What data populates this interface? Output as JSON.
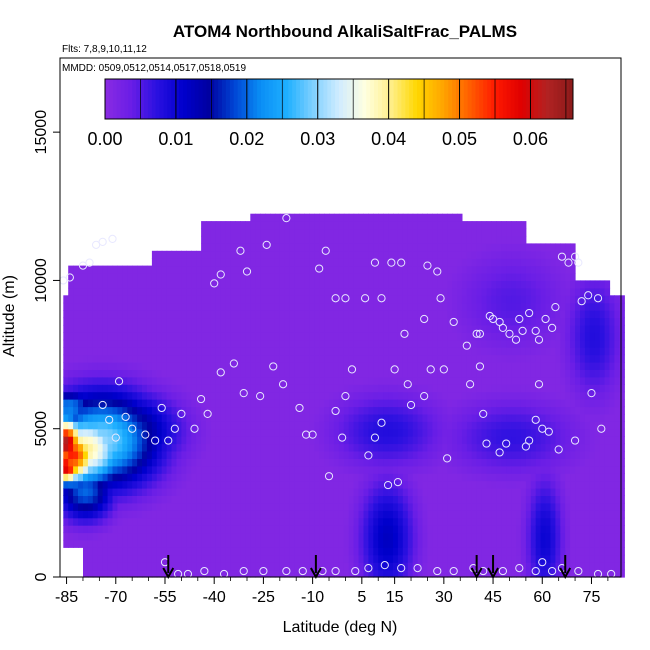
{
  "chart_data": {
    "type": "heatmap",
    "title": "ATOM4 Northbound AlkaliSaltFrac_PALMS",
    "subtitle_flights": "Flts: 7,8,9,10,11,12",
    "subtitle_dates": "MMDD: 0509,0512,0514,0517,0518,0519",
    "xlabel": "Latitude (deg N)",
    "ylabel": "Altitude (m)",
    "xlim": [
      -87,
      84
    ],
    "ylim": [
      0,
      17500
    ],
    "x_ticks": [
      -85,
      -70,
      -55,
      -40,
      -25,
      -10,
      5,
      15,
      30,
      45,
      60,
      75
    ],
    "y_ticks": [
      0,
      5000,
      10000,
      15000
    ],
    "colorbar": {
      "ticks": [
        "0.00",
        "0.01",
        "0.02",
        "0.03",
        "0.04",
        "0.05",
        "0.06"
      ],
      "range": [
        0,
        0.066
      ],
      "colors": [
        "#8a2be2",
        "#6a1ee6",
        "#2a10e0",
        "#0000cd",
        "#0000a0",
        "#0047d6",
        "#0a8ff5",
        "#1fb0ff",
        "#7fd0ff",
        "#d0ecff",
        "#ffffe0",
        "#ffef8a",
        "#ffd700",
        "#ffa500",
        "#ff6000",
        "#ff1a00",
        "#e00000",
        "#b22222",
        "#8b1a1a"
      ]
    },
    "background_value": 0.001,
    "coverage": [
      {
        "x": [
          -85,
          -60
        ],
        "top": 10500
      },
      {
        "x": [
          -60,
          -45
        ],
        "top": 11000
      },
      {
        "x": [
          -45,
          -30
        ],
        "top": 11800
      },
      {
        "x": [
          -30,
          35
        ],
        "top": 12200
      },
      {
        "x": [
          35,
          55
        ],
        "top": 11800
      },
      {
        "x": [
          55,
          70
        ],
        "top": 11200
      },
      {
        "x": [
          70,
          80
        ],
        "top": 10000
      },
      {
        "x": [
          80,
          84
        ],
        "top": 9500
      }
    ],
    "hotspots": [
      {
        "lat": -86,
        "alt": 4400,
        "value": 0.063,
        "sx": 4,
        "sy": 600
      },
      {
        "lat": -86,
        "alt": 3600,
        "value": 0.06,
        "sx": 4,
        "sy": 400
      },
      {
        "lat": -84,
        "alt": 4000,
        "value": 0.055,
        "sx": 6,
        "sy": 700
      },
      {
        "lat": -80,
        "alt": 4200,
        "value": 0.04,
        "sx": 9,
        "sy": 900
      },
      {
        "lat": -75,
        "alt": 4500,
        "value": 0.03,
        "sx": 12,
        "sy": 1100
      },
      {
        "lat": -80,
        "alt": 2800,
        "value": 0.02,
        "sx": 6,
        "sy": 700
      },
      {
        "lat": -70,
        "alt": 4800,
        "value": 0.02,
        "sx": 12,
        "sy": 900
      },
      {
        "lat": -85,
        "alt": 5600,
        "value": 0.022,
        "sx": 6,
        "sy": 400
      },
      {
        "lat": 12,
        "alt": 1200,
        "value": 0.012,
        "sx": 6,
        "sy": 1400
      },
      {
        "lat": 12,
        "alt": 4800,
        "value": 0.008,
        "sx": 12,
        "sy": 900
      },
      {
        "lat": 60,
        "alt": 1200,
        "value": 0.01,
        "sx": 4,
        "sy": 1500
      },
      {
        "lat": 50,
        "alt": 4600,
        "value": 0.007,
        "sx": 14,
        "sy": 900
      },
      {
        "lat": 75,
        "alt": 8000,
        "value": 0.008,
        "sx": 6,
        "sy": 1500
      },
      {
        "lat": 50,
        "alt": 9200,
        "value": 0.005,
        "sx": 12,
        "sy": 1200
      }
    ],
    "sample_points": [
      [
        -86,
        10000
      ],
      [
        -84,
        10100
      ],
      [
        -80,
        10500
      ],
      [
        -78,
        10600
      ],
      [
        -76,
        11200
      ],
      [
        -74,
        11300
      ],
      [
        -71,
        11400
      ],
      [
        -69,
        6600
      ],
      [
        -74,
        5800
      ],
      [
        -72,
        5300
      ],
      [
        -70,
        4700
      ],
      [
        -67,
        5400
      ],
      [
        -65,
        5000
      ],
      [
        -56,
        5700
      ],
      [
        -61,
        4800
      ],
      [
        -58,
        4600
      ],
      [
        -54,
        4600
      ],
      [
        -52,
        5000
      ],
      [
        -50,
        5500
      ],
      [
        -46,
        5000
      ],
      [
        -42,
        5500
      ],
      [
        -44,
        6000
      ],
      [
        -38,
        6900
      ],
      [
        -34,
        7200
      ],
      [
        -31,
        6200
      ],
      [
        -26,
        6100
      ],
      [
        -22,
        7100
      ],
      [
        -24,
        11200
      ],
      [
        -18,
        12100
      ],
      [
        -19,
        6500
      ],
      [
        -14,
        5700
      ],
      [
        -12,
        4800
      ],
      [
        -10,
        4800
      ],
      [
        -3,
        5600
      ],
      [
        -1,
        4700
      ],
      [
        -5,
        3400
      ],
      [
        0,
        6100
      ],
      [
        2,
        7000
      ],
      [
        -38,
        10200
      ],
      [
        -40,
        9900
      ],
      [
        -32,
        11000
      ],
      [
        -30,
        10300
      ],
      [
        -6,
        11000
      ],
      [
        -8,
        10400
      ],
      [
        -3,
        9400
      ],
      [
        0,
        9400
      ],
      [
        6,
        9400
      ],
      [
        9,
        10600
      ],
      [
        11,
        9400
      ],
      [
        14,
        10600
      ],
      [
        17,
        10600
      ],
      [
        19,
        6500
      ],
      [
        24,
        6100
      ],
      [
        25,
        10500
      ],
      [
        28,
        10300
      ],
      [
        29,
        9400
      ],
      [
        30,
        7000
      ],
      [
        33,
        8600
      ],
      [
        37,
        7800
      ],
      [
        40,
        8200
      ],
      [
        41,
        8200
      ],
      [
        41,
        7100
      ],
      [
        44,
        8800
      ],
      [
        45,
        8700
      ],
      [
        47,
        8600
      ],
      [
        48,
        8400
      ],
      [
        50,
        8200
      ],
      [
        52,
        8000
      ],
      [
        53,
        8700
      ],
      [
        54,
        8300
      ],
      [
        56,
        8900
      ],
      [
        58,
        8300
      ],
      [
        59,
        8000
      ],
      [
        61,
        8700
      ],
      [
        63,
        8400
      ],
      [
        64,
        9100
      ],
      [
        66,
        10800
      ],
      [
        68,
        10600
      ],
      [
        70,
        10800
      ],
      [
        71,
        10600
      ],
      [
        72,
        9300
      ],
      [
        74,
        9500
      ],
      [
        77,
        9400
      ],
      [
        78,
        5000
      ],
      [
        75,
        6200
      ],
      [
        70,
        4600
      ],
      [
        65,
        4300
      ],
      [
        62,
        4900
      ],
      [
        60,
        5000
      ],
      [
        58,
        5300
      ],
      [
        56,
        4600
      ],
      [
        55,
        4400
      ],
      [
        49,
        4500
      ],
      [
        47,
        4200
      ],
      [
        43,
        4500
      ],
      [
        42,
        5500
      ],
      [
        38,
        6500
      ],
      [
        31,
        4000
      ],
      [
        26,
        7000
      ],
      [
        24,
        8700
      ],
      [
        20,
        5800
      ],
      [
        18,
        8200
      ],
      [
        15,
        7000
      ],
      [
        11,
        5200
      ],
      [
        9,
        4700
      ],
      [
        7,
        4100
      ],
      [
        13,
        3100
      ],
      [
        16,
        3200
      ],
      [
        59,
        6500
      ],
      [
        -55,
        500
      ],
      [
        -51,
        100
      ],
      [
        -48,
        100
      ],
      [
        -43,
        200
      ],
      [
        -37,
        100
      ],
      [
        -31,
        200
      ],
      [
        -25,
        200
      ],
      [
        -18,
        200
      ],
      [
        -13,
        200
      ],
      [
        -7,
        200
      ],
      [
        -3,
        200
      ],
      [
        3,
        200
      ],
      [
        7,
        300
      ],
      [
        12,
        400
      ],
      [
        17,
        300
      ],
      [
        22,
        300
      ],
      [
        28,
        200
      ],
      [
        33,
        200
      ],
      [
        39,
        300
      ],
      [
        42,
        200
      ],
      [
        48,
        200
      ],
      [
        53,
        300
      ],
      [
        58,
        200
      ],
      [
        60,
        500
      ],
      [
        63,
        200
      ],
      [
        66,
        300
      ],
      [
        71,
        200
      ],
      [
        77,
        100
      ],
      [
        81,
        100
      ]
    ],
    "arrows_lat": [
      -54,
      -9,
      40,
      45,
      67
    ]
  }
}
